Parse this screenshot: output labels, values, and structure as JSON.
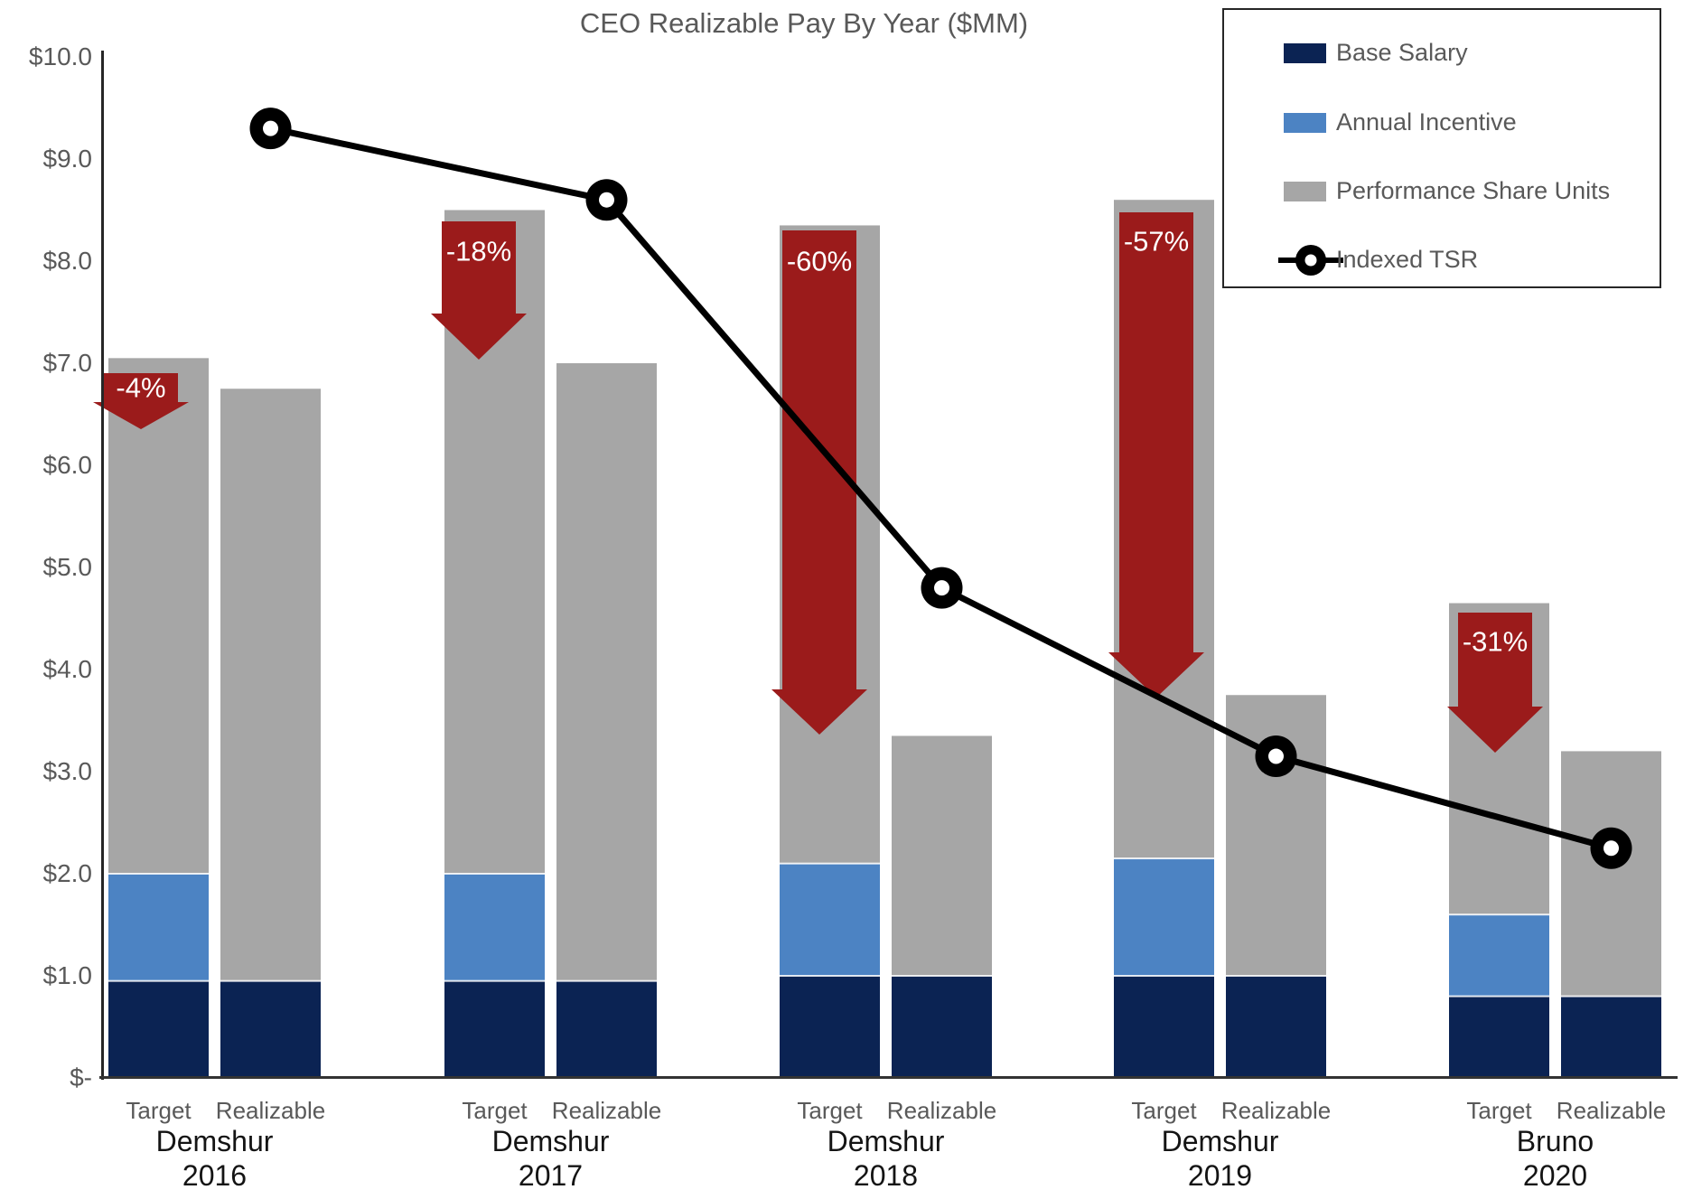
{
  "title": "CEO Realizable Pay By Year ($MM)",
  "colors": {
    "base_salary": "#0B2353",
    "annual_incentive": "#4C83C3",
    "psu": "#A6A6A6",
    "arrow_red": "#9B1B1B",
    "tsr_line": "#000000",
    "axis": "#333333",
    "tick_text": "#595959",
    "label_text": "#141414",
    "arrow_text": "#FFFFFF"
  },
  "y_axis": {
    "ticks": [
      "$10.0",
      "$9.0",
      "$8.0",
      "$7.0",
      "$6.0",
      "$5.0",
      "$4.0",
      "$3.0",
      "$2.0",
      "$1.0",
      "$-"
    ],
    "max": 10,
    "min": 0
  },
  "legend": {
    "items": [
      {
        "label": "Base Salary",
        "type": "swatch",
        "color_key": "base_salary"
      },
      {
        "label": "Annual Incentive",
        "type": "swatch",
        "color_key": "annual_incentive"
      },
      {
        "label": "Performance Share Units",
        "type": "swatch",
        "color_key": "psu"
      },
      {
        "label": "Indexed TSR",
        "type": "line_marker"
      }
    ]
  },
  "chart_data": {
    "type": "combo: stacked bar + line",
    "bar_labels": [
      "Target",
      "Realizable"
    ],
    "series_names": [
      "Base Salary",
      "Annual Incentive",
      "Performance Share Units",
      "Indexed TSR"
    ],
    "ylim": [
      0,
      10
    ],
    "legend_position": "top-right",
    "grid": false,
    "groups": [
      {
        "name": "Demshur",
        "year": "2016",
        "arrow": "-4%",
        "target": {
          "base_salary": 0.95,
          "annual_incentive": 1.05,
          "psu": 5.05,
          "total": 7.05
        },
        "realizable": {
          "base_salary": 0.95,
          "annual_incentive": 0,
          "psu": 5.8,
          "total": 6.75
        },
        "indexed_tsr": 9.3
      },
      {
        "name": "Demshur",
        "year": "2017",
        "arrow": "-18%",
        "target": {
          "base_salary": 0.95,
          "annual_incentive": 1.05,
          "psu": 6.5,
          "total": 8.5
        },
        "realizable": {
          "base_salary": 0.95,
          "annual_incentive": 0,
          "psu": 6.05,
          "total": 7.0
        },
        "indexed_tsr": 8.6
      },
      {
        "name": "Demshur",
        "year": "2018",
        "arrow": "-60%",
        "target": {
          "base_salary": 1.0,
          "annual_incentive": 1.1,
          "psu": 6.25,
          "total": 8.35
        },
        "realizable": {
          "base_salary": 1.0,
          "annual_incentive": 0,
          "psu": 2.35,
          "total": 3.35
        },
        "indexed_tsr": 4.8
      },
      {
        "name": "Demshur",
        "year": "2019",
        "arrow": "-57%",
        "target": {
          "base_salary": 1.0,
          "annual_incentive": 1.15,
          "psu": 6.45,
          "total": 8.6
        },
        "realizable": {
          "base_salary": 1.0,
          "annual_incentive": 0,
          "psu": 2.75,
          "total": 3.75
        },
        "indexed_tsr": 3.15
      },
      {
        "name": "Bruno",
        "year": "2020",
        "arrow": "-31%",
        "target": {
          "base_salary": 0.8,
          "annual_incentive": 0.8,
          "psu": 3.05,
          "total": 4.65
        },
        "realizable": {
          "base_salary": 0.8,
          "annual_incentive": 0,
          "psu": 2.4,
          "total": 3.2
        },
        "indexed_tsr": 2.25
      }
    ]
  }
}
